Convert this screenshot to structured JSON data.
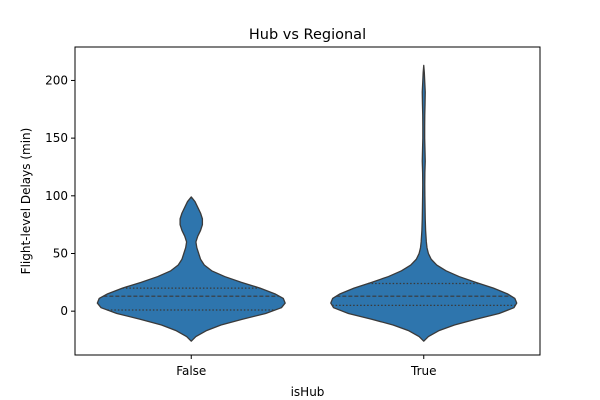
{
  "chart_data": {
    "type": "violin",
    "title": "Hub vs Regional",
    "xlabel": "isHub",
    "ylabel": "Flight-level Delays (min)",
    "categories": [
      "False",
      "True"
    ],
    "ylim": [
      -38,
      229
    ],
    "yticks": [
      0,
      50,
      100,
      150,
      200
    ],
    "grid": false,
    "fill_color": "#2e75ad",
    "edge_color": "#3a3a3a",
    "inner": "quartile",
    "violins": [
      {
        "category": "False",
        "min": -26,
        "max": 99,
        "quartiles": [
          1,
          13,
          20
        ],
        "profile": [
          [
            -26,
            0.0
          ],
          [
            -22,
            0.05
          ],
          [
            -17,
            0.16
          ],
          [
            -12,
            0.32
          ],
          [
            -7,
            0.55
          ],
          [
            -2,
            0.8
          ],
          [
            3,
            0.97
          ],
          [
            7,
            1.01
          ],
          [
            11,
            0.99
          ],
          [
            15,
            0.9
          ],
          [
            20,
            0.74
          ],
          [
            25,
            0.54
          ],
          [
            30,
            0.36
          ],
          [
            35,
            0.22
          ],
          [
            40,
            0.14
          ],
          [
            45,
            0.1
          ],
          [
            50,
            0.08
          ],
          [
            55,
            0.06
          ],
          [
            60,
            0.05
          ],
          [
            65,
            0.07
          ],
          [
            70,
            0.1
          ],
          [
            75,
            0.12
          ],
          [
            80,
            0.12
          ],
          [
            85,
            0.1
          ],
          [
            90,
            0.07
          ],
          [
            95,
            0.04
          ],
          [
            99,
            0.0
          ]
        ]
      },
      {
        "category": "True",
        "min": -26,
        "max": 213,
        "quartiles": [
          5,
          13,
          24
        ],
        "profile": [
          [
            -26,
            0.0
          ],
          [
            -22,
            0.05
          ],
          [
            -17,
            0.16
          ],
          [
            -12,
            0.33
          ],
          [
            -7,
            0.56
          ],
          [
            -2,
            0.81
          ],
          [
            3,
            0.97
          ],
          [
            7,
            1.0
          ],
          [
            11,
            0.98
          ],
          [
            15,
            0.9
          ],
          [
            20,
            0.75
          ],
          [
            25,
            0.56
          ],
          [
            30,
            0.38
          ],
          [
            35,
            0.24
          ],
          [
            40,
            0.14
          ],
          [
            45,
            0.08
          ],
          [
            50,
            0.05
          ],
          [
            55,
            0.035
          ],
          [
            60,
            0.028
          ],
          [
            70,
            0.02
          ],
          [
            80,
            0.016
          ],
          [
            90,
            0.014
          ],
          [
            100,
            0.012
          ],
          [
            110,
            0.011
          ],
          [
            120,
            0.012
          ],
          [
            130,
            0.016
          ],
          [
            140,
            0.013
          ],
          [
            150,
            0.01
          ],
          [
            160,
            0.01
          ],
          [
            170,
            0.011
          ],
          [
            180,
            0.014
          ],
          [
            190,
            0.016
          ],
          [
            200,
            0.01
          ],
          [
            207,
            0.006
          ],
          [
            213,
            0.0
          ]
        ]
      }
    ]
  }
}
